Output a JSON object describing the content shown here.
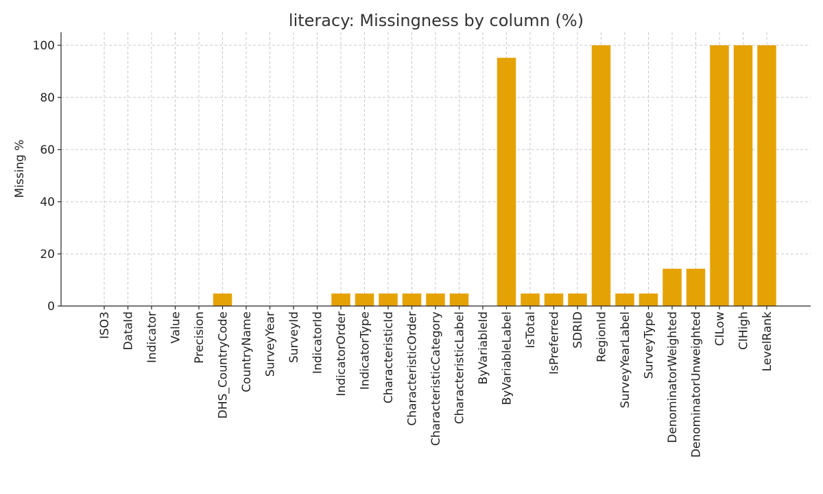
{
  "chart_data": {
    "type": "bar",
    "title": "literacy: Missingness by column (%)",
    "xlabel": "",
    "ylabel": "Missing %",
    "ylim": [
      0,
      105
    ],
    "yticks": [
      0,
      20,
      40,
      60,
      80,
      100
    ],
    "grid": true,
    "bar_color": "#e5a205",
    "categories": [
      "ISO3",
      "DataId",
      "Indicator",
      "Value",
      "Precision",
      "DHS_CountryCode",
      "CountryName",
      "SurveyYear",
      "SurveyId",
      "IndicatorId",
      "IndicatorOrder",
      "IndicatorType",
      "CharacteristicId",
      "CharacteristicOrder",
      "CharacteristicCategory",
      "CharacteristicLabel",
      "ByVariableId",
      "ByVariableLabel",
      "IsTotal",
      "IsPreferred",
      "SDRID",
      "RegionId",
      "SurveyYearLabel",
      "SurveyType",
      "DenominatorWeighted",
      "DenominatorUnweighted",
      "CILow",
      "CIHigh",
      "LevelRank"
    ],
    "values": [
      0,
      0,
      0,
      0,
      0,
      4.8,
      0,
      0,
      0,
      0,
      4.8,
      4.8,
      4.8,
      4.8,
      4.8,
      4.8,
      0,
      95.2,
      4.8,
      4.8,
      4.8,
      100,
      4.8,
      4.8,
      14.3,
      14.3,
      100,
      100,
      100
    ]
  }
}
